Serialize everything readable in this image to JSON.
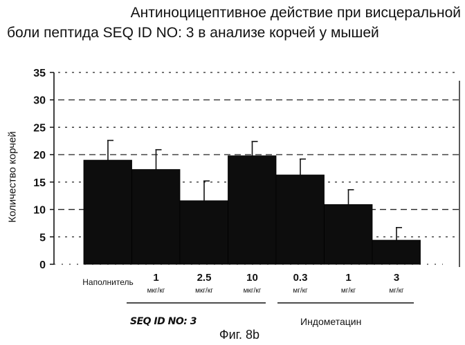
{
  "chart_data": {
    "type": "bar",
    "title_lines": [
      "Антиноцицептивное действие при висцеральной",
      "боли пептида SEQ ID NO: 3 в анализе корчей у мышей"
    ],
    "ylabel": "Количество корчей",
    "xlabel": "",
    "ylim": [
      0,
      35
    ],
    "yticks": [
      0,
      5,
      10,
      15,
      20,
      25,
      30,
      35
    ],
    "grid": true,
    "categories": [
      {
        "label": "Наполнитель",
        "unit": ""
      },
      {
        "label": "1",
        "unit": "мкг/кг"
      },
      {
        "label": "2.5",
        "unit": "мкг/кг"
      },
      {
        "label": "10",
        "unit": "мкг/кг"
      },
      {
        "label": "0.3",
        "unit": "мг/кг"
      },
      {
        "label": "1",
        "unit": "мг/кг"
      },
      {
        "label": "3",
        "unit": "мг/кг"
      }
    ],
    "values": [
      19,
      17.3,
      11.6,
      19.8,
      16.3,
      10.9,
      4.4
    ],
    "errors": [
      3.6,
      3.6,
      3.6,
      2.6,
      2.9,
      2.7,
      2.3
    ],
    "groups": [
      {
        "label": "SEQ ID NO: 3",
        "categories": [
          1,
          2,
          3
        ]
      },
      {
        "label": "Индометацин",
        "categories": [
          4,
          5,
          6
        ]
      }
    ],
    "bar_color": "#0d0d0d",
    "figure_label": "Фиг. 8b"
  }
}
